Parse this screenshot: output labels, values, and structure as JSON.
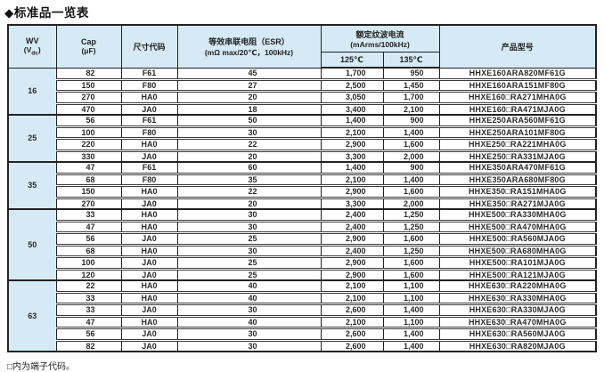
{
  "title": "◆标准品一览表",
  "footnote": "□内为端子代码。",
  "colors": {
    "header_fill": "#d6eaf5",
    "border": "#222222",
    "text": "#2a2a2a",
    "background": "#ffffff"
  },
  "table": {
    "headers": {
      "wv": {
        "line1": "WV",
        "line2_open": "(V",
        "line2_sub": "dc",
        "line2_close": ")"
      },
      "cap": {
        "line1": "Cap",
        "line2": "(μF)"
      },
      "size": "尺寸代码",
      "esr": {
        "line1": "等效串联电阻（ESR）",
        "line2": "(mΩ max/20℃，100kHz)"
      },
      "ripple": {
        "line1": "额定纹波电流",
        "line2": "(mArms/100kHz)"
      },
      "t125": "125℃",
      "t135": "135℃",
      "model": "产品型号"
    },
    "columns": [
      "WV (Vdc)",
      "Cap (μF)",
      "尺寸代码",
      "等效串联电阻 ESR (mΩ max/20℃, 100kHz)",
      "额定纹波电流 125℃ (mArms/100kHz)",
      "额定纹波电流 135℃ (mArms/100kHz)",
      "产品型号"
    ],
    "groups": [
      {
        "wv": "16",
        "rows": [
          [
            "82",
            "F61",
            "45",
            "1,700",
            "950",
            "HHXE160ARA820MF61G"
          ],
          [
            "150",
            "F80",
            "27",
            "2,500",
            "1,450",
            "HHXE160ARA151MF80G"
          ],
          [
            "270",
            "HA0",
            "20",
            "3,050",
            "1,700",
            "HHXE160□RA271MHA0G"
          ],
          [
            "470",
            "JA0",
            "18",
            "3,400",
            "2,100",
            "HHXE160□RA471MJA0G"
          ]
        ]
      },
      {
        "wv": "25",
        "rows": [
          [
            "56",
            "F61",
            "50",
            "1,400",
            "900",
            "HHXE250ARA560MF61G"
          ],
          [
            "100",
            "F80",
            "30",
            "2,100",
            "1,400",
            "HHXE250ARA101MF80G"
          ],
          [
            "220",
            "HA0",
            "22",
            "2,900",
            "1,600",
            "HHXE250□RA221MHA0G"
          ],
          [
            "330",
            "JA0",
            "20",
            "3,300",
            "2,000",
            "HHXE250□RA331MJA0G"
          ]
        ]
      },
      {
        "wv": "35",
        "rows": [
          [
            "47",
            "F61",
            "60",
            "1,400",
            "900",
            "HHXE350ARA470MF61G"
          ],
          [
            "68",
            "F80",
            "35",
            "2,100",
            "1,400",
            "HHXE350ARA680MF80G"
          ],
          [
            "150",
            "HA0",
            "22",
            "2,900",
            "1,600",
            "HHXE350□RA151MHA0G"
          ],
          [
            "270",
            "JA0",
            "20",
            "3,300",
            "2,000",
            "HHXE350□RA271MJA0G"
          ]
        ]
      },
      {
        "wv": "50",
        "rows": [
          [
            "33",
            "HA0",
            "30",
            "2,400",
            "1,250",
            "HHXE500□RA330MHA0G"
          ],
          [
            "47",
            "HA0",
            "30",
            "2,400",
            "1,250",
            "HHXE500□RA470MHA0G"
          ],
          [
            "56",
            "JA0",
            "25",
            "2,900",
            "1,600",
            "HHXE500□RA560MJA0G"
          ],
          [
            "68",
            "HA0",
            "30",
            "2,400",
            "1,250",
            "HHXE500□RA680MHA0G"
          ],
          [
            "100",
            "JA0",
            "25",
            "2,900",
            "1,600",
            "HHXE500□RA101MJA0G"
          ],
          [
            "120",
            "JA0",
            "25",
            "2,900",
            "1,600",
            "HHXE500□RA121MJA0G"
          ]
        ]
      },
      {
        "wv": "63",
        "rows": [
          [
            "22",
            "HA0",
            "40",
            "2,100",
            "1,100",
            "HHXE630□RA220MHA0G"
          ],
          [
            "33",
            "HA0",
            "40",
            "2,100",
            "1,100",
            "HHXE630□RA330MHA0G"
          ],
          [
            "33",
            "JA0",
            "30",
            "2,600",
            "1,400",
            "HHXE630□RA330MJA0G"
          ],
          [
            "47",
            "HA0",
            "40",
            "2,100",
            "1,100",
            "HHXE630□RA470MHA0G"
          ],
          [
            "56",
            "JA0",
            "30",
            "2,600",
            "1,400",
            "HHXE630□RA560MJA0G"
          ],
          [
            "82",
            "JA0",
            "30",
            "2,600",
            "1,400",
            "HHXE630□RA820MJA0G"
          ]
        ]
      }
    ]
  }
}
